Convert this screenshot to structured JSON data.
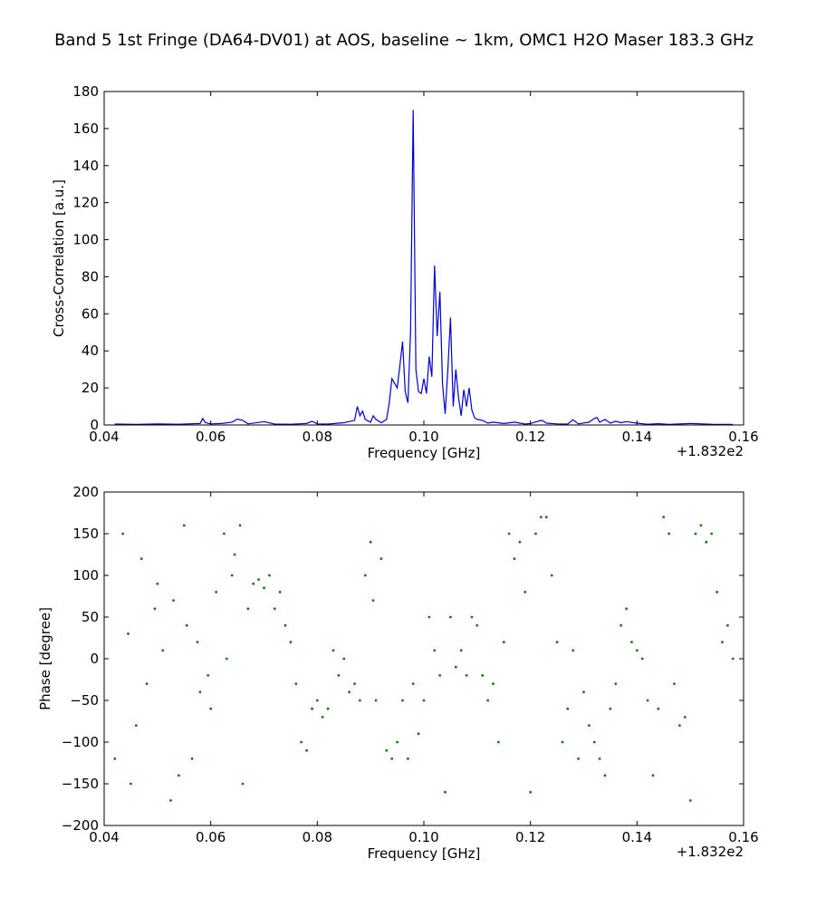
{
  "title": "Band 5 1st Fringe (DA64-DV01) at AOS, baseline ~ 1km, OMC1 H2O Maser 183.3 GHz",
  "chart_data": [
    {
      "type": "line",
      "xlabel": "Frequency [GHz]",
      "ylabel": "Cross-Correlation [a.u.]",
      "xlim": [
        0.04,
        0.16
      ],
      "ylim": [
        0,
        180
      ],
      "x_offset_label": "+1.832e2",
      "xticks": [
        "0.04",
        "0.06",
        "0.08",
        "0.10",
        "0.12",
        "0.14",
        "0.16"
      ],
      "yticks": [
        "0",
        "20",
        "40",
        "60",
        "80",
        "100",
        "120",
        "140",
        "160",
        "180"
      ],
      "grid": false,
      "series_color": "#0000cc",
      "series": [
        {
          "x": [
            0.042,
            0.046,
            0.05,
            0.054,
            0.058,
            0.0585,
            0.059,
            0.06,
            0.062,
            0.064,
            0.065,
            0.066,
            0.067,
            0.07,
            0.072,
            0.075,
            0.078,
            0.079,
            0.08,
            0.082,
            0.085,
            0.087,
            0.0875,
            0.088,
            0.0885,
            0.089,
            0.09,
            0.0905,
            0.091,
            0.092,
            0.093,
            0.0935,
            0.094,
            0.095,
            0.0955,
            0.096,
            0.0965,
            0.097,
            0.0975,
            0.098,
            0.0985,
            0.099,
            0.0995,
            0.1,
            0.1005,
            0.101,
            0.1015,
            0.102,
            0.1025,
            0.103,
            0.1035,
            0.104,
            0.1045,
            0.105,
            0.1055,
            0.106,
            0.1065,
            0.107,
            0.1075,
            0.108,
            0.1085,
            0.109,
            0.1095,
            0.11,
            0.111,
            0.112,
            0.113,
            0.115,
            0.117,
            0.119,
            0.12,
            0.122,
            0.1225,
            0.123,
            0.125,
            0.127,
            0.128,
            0.129,
            0.131,
            0.132,
            0.1325,
            0.133,
            0.134,
            0.135,
            0.136,
            0.137,
            0.138,
            0.14,
            0.142,
            0.144,
            0.146,
            0.15,
            0.154,
            0.158
          ],
          "y": [
            0.5,
            0.3,
            0.6,
            0.4,
            0.8,
            3.5,
            1.2,
            0.6,
            0.8,
            1.5,
            3.2,
            2.5,
            0.6,
            1.8,
            0.5,
            0.4,
            0.8,
            2.0,
            0.6,
            0.5,
            1.2,
            2.5,
            10.0,
            5.0,
            7.5,
            3.0,
            1.5,
            5.0,
            3.0,
            1.2,
            3.0,
            12.0,
            25.0,
            20.0,
            32.0,
            45.0,
            18.0,
            12.0,
            50.0,
            170.0,
            30.0,
            18.0,
            17.0,
            25.0,
            17.0,
            37.0,
            26.0,
            86.0,
            48.0,
            72.0,
            22.0,
            6.0,
            30.0,
            58.0,
            10.0,
            30.0,
            15.0,
            5.0,
            19.0,
            10.0,
            20.0,
            8.0,
            4.0,
            3.0,
            2.5,
            1.0,
            1.5,
            0.8,
            1.5,
            0.5,
            0.8,
            2.5,
            2.0,
            1.0,
            0.6,
            0.5,
            2.8,
            0.6,
            1.5,
            3.5,
            4.0,
            1.5,
            3.0,
            1.0,
            2.0,
            1.2,
            1.8,
            1.0,
            0.4,
            0.7,
            0.3,
            0.8,
            0.4,
            0.3
          ]
        }
      ]
    },
    {
      "type": "scatter",
      "xlabel": "Frequency [GHz]",
      "ylabel": "Phase [degree]",
      "xlim": [
        0.04,
        0.16
      ],
      "ylim": [
        -200,
        200
      ],
      "x_offset_label": "+1.832e2",
      "xticks": [
        "0.04",
        "0.06",
        "0.08",
        "0.10",
        "0.12",
        "0.14",
        "0.16"
      ],
      "yticks": [
        "−200",
        "−150",
        "−100",
        "−50",
        "0",
        "50",
        "100",
        "150",
        "200"
      ],
      "grid": false,
      "series_color": "#008000",
      "series": [
        {
          "x": [
            0.042,
            0.0435,
            0.0445,
            0.045,
            0.046,
            0.047,
            0.048,
            0.0495,
            0.05,
            0.051,
            0.0525,
            0.053,
            0.054,
            0.055,
            0.0555,
            0.0565,
            0.0575,
            0.058,
            0.0595,
            0.06,
            0.061,
            0.0625,
            0.063,
            0.064,
            0.0645,
            0.0655,
            0.066,
            0.067,
            0.068,
            0.069,
            0.07,
            0.071,
            0.072,
            0.073,
            0.074,
            0.075,
            0.076,
            0.077,
            0.078,
            0.079,
            0.08,
            0.081,
            0.082,
            0.083,
            0.084,
            0.085,
            0.086,
            0.087,
            0.088,
            0.089,
            0.09,
            0.0905,
            0.091,
            0.092,
            0.093,
            0.094,
            0.095,
            0.096,
            0.097,
            0.098,
            0.099,
            0.1,
            0.101,
            0.102,
            0.103,
            0.104,
            0.105,
            0.106,
            0.107,
            0.108,
            0.109,
            0.11,
            0.111,
            0.112,
            0.113,
            0.114,
            0.115,
            0.116,
            0.117,
            0.118,
            0.119,
            0.12,
            0.121,
            0.122,
            0.123,
            0.124,
            0.125,
            0.126,
            0.127,
            0.128,
            0.129,
            0.13,
            0.131,
            0.132,
            0.133,
            0.134,
            0.135,
            0.136,
            0.137,
            0.138,
            0.139,
            0.14,
            0.141,
            0.142,
            0.143,
            0.144,
            0.145,
            0.146,
            0.147,
            0.148,
            0.149,
            0.15,
            0.151,
            0.152,
            0.153,
            0.154,
            0.155,
            0.156,
            0.157,
            0.158
          ],
          "y": [
            -120,
            150,
            30,
            -150,
            -80,
            120,
            -30,
            60,
            90,
            10,
            -170,
            70,
            -140,
            160,
            40,
            -120,
            20,
            -40,
            -20,
            -60,
            80,
            150,
            0,
            100,
            125,
            160,
            -150,
            60,
            90,
            95,
            85,
            100,
            60,
            80,
            40,
            20,
            -30,
            -100,
            -110,
            -60,
            -50,
            -70,
            -60,
            10,
            -20,
            0,
            -40,
            -30,
            -50,
            100,
            140,
            70,
            -50,
            120,
            -110,
            -120,
            -100,
            -50,
            -120,
            -30,
            -90,
            -50,
            50,
            10,
            -20,
            -160,
            50,
            -10,
            10,
            -20,
            50,
            40,
            -20,
            -50,
            -30,
            -100,
            20,
            150,
            120,
            140,
            80,
            -160,
            150,
            170,
            170,
            100,
            20,
            -100,
            -60,
            10,
            -120,
            -40,
            -80,
            -100,
            -120,
            -140,
            -60,
            -30,
            40,
            60,
            20,
            10,
            0,
            -50,
            -140,
            -60,
            170,
            150,
            -30,
            -80,
            -70,
            -170,
            150,
            160,
            140,
            150,
            80,
            20,
            40,
            0
          ]
        }
      ]
    }
  ]
}
